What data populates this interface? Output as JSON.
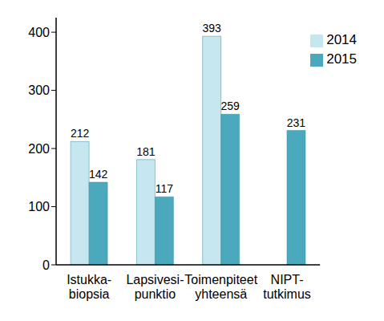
{
  "chart_data": {
    "type": "bar",
    "categories": [
      "Istukka-\nbiopsia",
      "Lapsivesi-\npunktio",
      "Toimenpiteet\nyhteensä",
      "NIPT-\ntutkimus"
    ],
    "series": [
      {
        "name": "2014",
        "color": "#c6e7ef",
        "values": [
          212,
          181,
          393,
          null
        ]
      },
      {
        "name": "2015",
        "color": "#4aa9bd",
        "values": [
          142,
          117,
          259,
          231
        ]
      }
    ],
    "ylim": [
      0,
      425
    ],
    "yticks": [
      0,
      100,
      200,
      300,
      400
    ],
    "grid": false,
    "legend": "top-right",
    "data_labels": true
  }
}
